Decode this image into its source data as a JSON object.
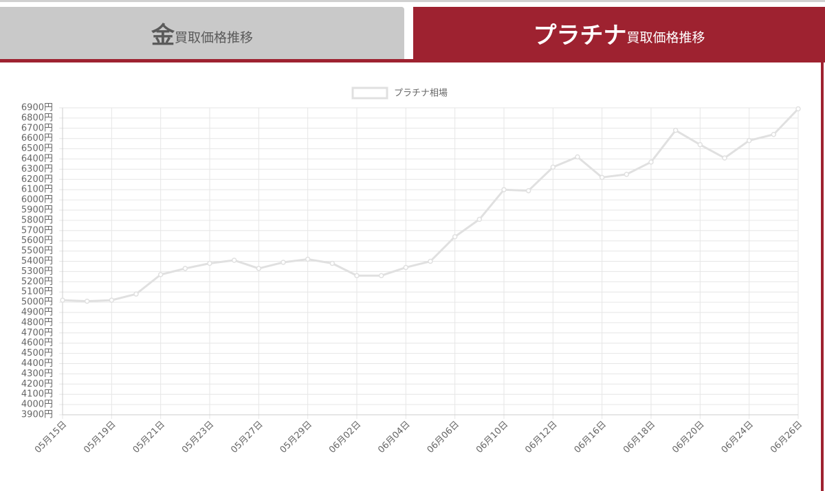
{
  "tabs": [
    {
      "big": "金",
      "small": "買取価格推移"
    },
    {
      "big": "プラチナ",
      "small": "買取価格推移"
    }
  ],
  "chart_data": {
    "type": "line",
    "legend": "top",
    "grid": true,
    "categories": [
      "05月15日",
      null,
      "05月19日",
      null,
      "05月21日",
      null,
      "05月23日",
      null,
      "05月27日",
      null,
      "05月29日",
      null,
      "06月02日",
      null,
      "06月04日",
      null,
      "06月06日",
      null,
      "06月10日",
      null,
      "06月12日",
      null,
      "06月16日",
      null,
      "06月18日",
      null,
      "06月20日",
      null,
      "06月24日",
      null,
      "06月26日"
    ],
    "series": [
      {
        "name": "プラチナ相場",
        "color": "#e0e0e0",
        "values": [
          5020,
          5010,
          5020,
          5080,
          5270,
          5330,
          5380,
          5410,
          5330,
          5390,
          5420,
          5380,
          5260,
          5260,
          5340,
          5400,
          5640,
          5810,
          6100,
          6090,
          6320,
          6420,
          6220,
          6250,
          6370,
          6680,
          6540,
          6410,
          6580,
          6640,
          6890
        ]
      }
    ],
    "ylim": [
      3900,
      6900
    ],
    "yticks": [
      {
        "value": 3900,
        "label": "3900円"
      },
      {
        "value": 4000,
        "label": "4000円"
      },
      {
        "value": 4100,
        "label": "4100円"
      },
      {
        "value": 4200,
        "label": "4200円"
      },
      {
        "value": 4300,
        "label": "4300円"
      },
      {
        "value": 4400,
        "label": "4400円"
      },
      {
        "value": 4500,
        "label": "4500円"
      },
      {
        "value": 4600,
        "label": "4600円"
      },
      {
        "value": 4700,
        "label": "4700円"
      },
      {
        "value": 4800,
        "label": "4800円"
      },
      {
        "value": 4900,
        "label": "4900円"
      },
      {
        "value": 5000,
        "label": "5000円"
      },
      {
        "value": 5100,
        "label": "5100円"
      },
      {
        "value": 5200,
        "label": "5200円"
      },
      {
        "value": 5300,
        "label": "5300円"
      },
      {
        "value": 5400,
        "label": "5400円"
      },
      {
        "value": 5500,
        "label": "5500円"
      },
      {
        "value": 5600,
        "label": "5600円"
      },
      {
        "value": 5700,
        "label": "5700円"
      },
      {
        "value": 5800,
        "label": "5800円"
      },
      {
        "value": 5900,
        "label": "5900円"
      },
      {
        "value": 6000,
        "label": "6000円"
      },
      {
        "value": 6100,
        "label": "6100円"
      },
      {
        "value": 6200,
        "label": "6200円"
      },
      {
        "value": 6300,
        "label": "6300円"
      },
      {
        "value": 6400,
        "label": "6400円"
      },
      {
        "value": 6500,
        "label": "6500円"
      },
      {
        "value": 6600,
        "label": "6600円"
      },
      {
        "value": 6700,
        "label": "6700円"
      },
      {
        "value": 6800,
        "label": "6800円"
      },
      {
        "value": 6900,
        "label": "6900円"
      }
    ]
  }
}
